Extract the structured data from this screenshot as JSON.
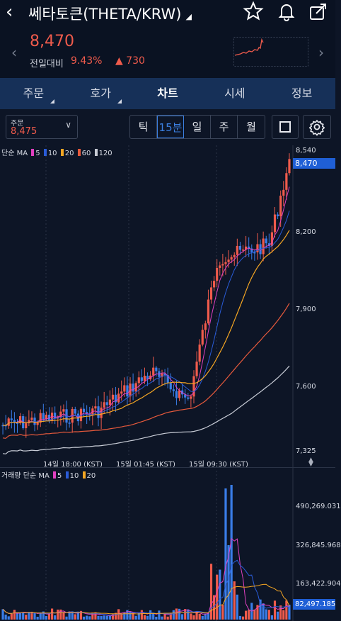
{
  "header": {
    "back_icon": "chevron-left-icon",
    "title": "쎄타토큰(THETA/KRW)",
    "price": "8,470",
    "change_label": "전일대비",
    "change_pct": "9.43%",
    "change_value": "730",
    "icons": [
      "star-icon",
      "bell-icon",
      "share-icon"
    ]
  },
  "tabs": [
    {
      "label": "주문",
      "has_menu": true
    },
    {
      "label": "호가",
      "has_menu": true
    },
    {
      "label": "차트",
      "active": true
    },
    {
      "label": "시세"
    },
    {
      "label": "정보"
    }
  ],
  "toolbar": {
    "order_label": "주문",
    "order_price": "8,475",
    "periods": [
      "틱",
      "15분",
      "일",
      "주",
      "월"
    ],
    "selected_period": "15분"
  },
  "legend": {
    "price_prefix": "단순 MA",
    "volume_prefix": "거래량 단순 MA",
    "ma": [
      {
        "period": "5",
        "color": "#e040c0"
      },
      {
        "period": "10",
        "color": "#2a5cd8"
      },
      {
        "period": "20",
        "color": "#f5a623"
      },
      {
        "period": "60",
        "color": "#e85a3c"
      },
      {
        "period": "120",
        "color": "#c8ccd6"
      }
    ]
  },
  "price_axis": [
    "8,540",
    "8,200",
    "7,900",
    "7,600",
    "7,325"
  ],
  "current_price_tag": "8,470",
  "time_axis": [
    "14일 18:00 (KST)",
    "15일 01:45 (KST)",
    "15일 09:30 (KST)"
  ],
  "volume_axis": [
    "490,269.031",
    "326,845.968",
    "163,422.904"
  ],
  "current_volume_tag": "82,497.185",
  "colors": {
    "up": "#ef5b4c",
    "down": "#3a7de8",
    "tab_bg": "#163058",
    "accent": "#1f5fd6"
  }
}
